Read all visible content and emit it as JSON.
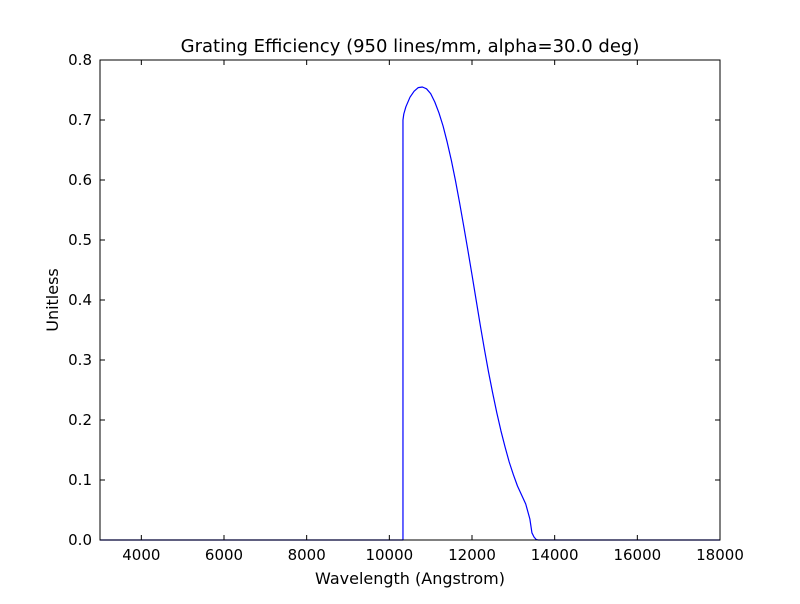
{
  "chart_data": {
    "type": "line",
    "title": "Grating Efficiency (950 lines/mm, alpha=30.0 deg)",
    "xlabel": "Wavelength (Angstrom)",
    "ylabel": "Unitless",
    "xlim": [
      3000,
      18000
    ],
    "ylim": [
      0.0,
      0.8
    ],
    "xticks": [
      4000,
      6000,
      8000,
      10000,
      12000,
      14000,
      16000,
      18000
    ],
    "yticks": [
      0.0,
      0.1,
      0.2,
      0.3,
      0.4,
      0.5,
      0.6,
      0.7,
      0.8
    ],
    "xtick_labels": [
      "4000",
      "6000",
      "8000",
      "10000",
      "12000",
      "14000",
      "16000",
      "18000"
    ],
    "ytick_labels": [
      "0.0",
      "0.1",
      "0.2",
      "0.3",
      "0.4",
      "0.5",
      "0.6",
      "0.7",
      "0.8"
    ],
    "grid": false,
    "line_color": "#0000ff",
    "series": [
      {
        "x": [
          3000,
          10330,
          10330,
          10350,
          10400,
          10500,
          10600,
          10700,
          10800,
          10900,
          11000,
          11100,
          11200,
          11300,
          11400,
          11500,
          11600,
          11700,
          11800,
          11900,
          12000,
          12100,
          12200,
          12300,
          12400,
          12500,
          12600,
          12700,
          12800,
          12900,
          13000,
          13100,
          13200,
          13300,
          13400,
          13450,
          13500,
          13550,
          13600,
          13650,
          18000
        ],
        "y": [
          0.0,
          0.0,
          0.7,
          0.71,
          0.722,
          0.738,
          0.748,
          0.754,
          0.755,
          0.752,
          0.744,
          0.73,
          0.712,
          0.69,
          0.663,
          0.633,
          0.599,
          0.562,
          0.523,
          0.483,
          0.442,
          0.4,
          0.358,
          0.318,
          0.28,
          0.245,
          0.212,
          0.182,
          0.155,
          0.13,
          0.109,
          0.09,
          0.075,
          0.06,
          0.035,
          0.012,
          0.005,
          0.001,
          0.0,
          0.0,
          0.0
        ]
      }
    ]
  }
}
